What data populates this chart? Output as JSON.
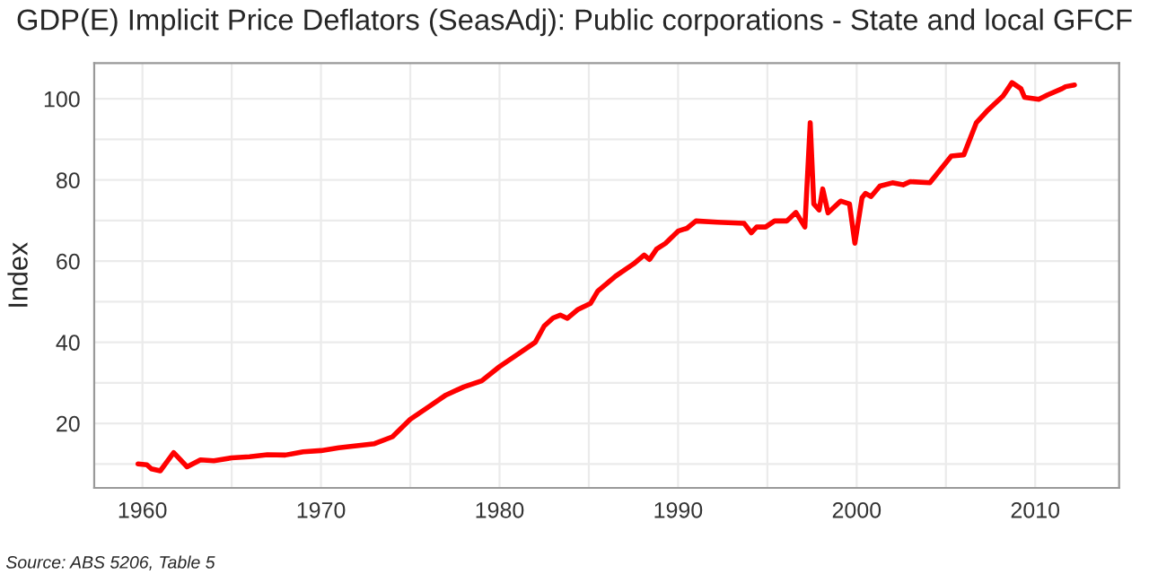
{
  "chart_data": {
    "type": "line",
    "title": "GDP(E) Implicit Price Deflators (SeasAdj): Public corporations - State and local GFCF",
    "ylabel": "Index",
    "annotations": [
      "Source: ABS 5206, Table 5"
    ],
    "series": [
      {
        "color": "#ff0000",
        "x": [
          1959.75,
          1960.25,
          1960.5,
          1961,
          1961.75,
          1962.5,
          1963.25,
          1964,
          1965,
          1966,
          1967,
          1968,
          1969,
          1970,
          1971,
          1972,
          1973,
          1974,
          1975,
          1976,
          1977,
          1978,
          1979,
          1980,
          1981,
          1982,
          1982.5,
          1983,
          1983.4,
          1983.8,
          1984.4,
          1985.1,
          1985.5,
          1986.5,
          1987.5,
          1988.1,
          1988.4,
          1988.8,
          1989.3,
          1990,
          1990.5,
          1991,
          1992.2,
          1993.7,
          1994.1,
          1994.4,
          1994.9,
          1995.4,
          1996.1,
          1996.6,
          1997.1,
          1997.4,
          1997.6,
          1997.9,
          1998.1,
          1998.4,
          1999.1,
          1999.6,
          1999.9,
          2000.3,
          2000.5,
          2000.8,
          2001.3,
          2002,
          2002.6,
          2003,
          2004.1,
          2005.3,
          2006,
          2006.7,
          2007.3,
          2008.2,
          2008.7,
          2009.2,
          2009.4,
          2010.2,
          2010.7,
          2011.5,
          2011.7,
          2012.2
        ],
        "values": [
          10,
          9.8,
          8.8,
          8.3,
          12.8,
          9.3,
          11,
          10.8,
          11.5,
          11.8,
          12.3,
          12.2,
          13,
          13.3,
          14,
          14.5,
          15,
          16.7,
          21,
          24,
          27,
          29,
          30.5,
          34,
          37,
          40,
          44,
          46,
          46.7,
          45.9,
          48.1,
          49.6,
          52.6,
          56.3,
          59.3,
          61.5,
          60.4,
          63,
          64.4,
          67.4,
          68.1,
          69.9,
          69.6,
          69.3,
          67,
          68.4,
          68.4,
          69.9,
          69.9,
          72,
          68.4,
          94.1,
          74.1,
          72.6,
          77.8,
          71.9,
          74.8,
          74.1,
          64.4,
          75.6,
          76.7,
          75.9,
          78.5,
          79.3,
          78.8,
          79.6,
          79.3,
          85.9,
          86.2,
          94.1,
          97,
          100.7,
          104,
          102.5,
          100.4,
          99.9,
          101,
          102.5,
          103,
          103.4
        ]
      }
    ],
    "xlim": [
      1957.3,
      2014.7
    ],
    "ylim": [
      4.1,
      108.8
    ],
    "xticks": [
      1960,
      {
        "value": 1965,
        "label": null
      },
      1970,
      {
        "value": 1975,
        "label": null
      },
      1980,
      {
        "value": 1985,
        "label": null
      },
      1990,
      {
        "value": 1995,
        "label": null
      },
      2000,
      {
        "value": 2005,
        "label": null
      },
      2010
    ],
    "yticks": [
      {
        "value": 10,
        "label": null
      },
      20,
      {
        "value": 30,
        "label": null
      },
      40,
      {
        "value": 50,
        "label": null
      },
      60,
      {
        "value": 70,
        "label": null
      },
      80,
      {
        "value": 90,
        "label": null
      },
      100
    ],
    "grid": true,
    "line_style": "solid",
    "marker": "none"
  }
}
